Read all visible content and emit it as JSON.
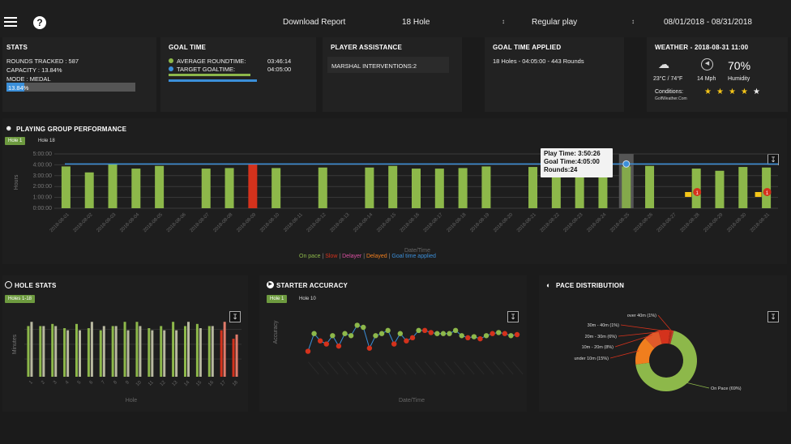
{
  "topbar": {
    "download_label": "Download Report",
    "holes_select": "18 Hole",
    "mode_select": "Regular play",
    "date_range": "08/01/2018 - 08/31/2018",
    "help_glyph": "?"
  },
  "stats": {
    "title": "STATS",
    "rounds_tracked": "ROUNDS TRACKED : 587",
    "capacity": "CAPACITY : 13.84%",
    "mode": "MODE : MEDAL",
    "bar_label": "13.84%",
    "capacity_fraction": 0.1384
  },
  "goal_time": {
    "title": "GOAL TIME",
    "avg_label": "AVERAGE ROUNDTIME:",
    "avg_value": "03:46:14",
    "target_label": "TARGET GOALTIME:",
    "target_value": "04:05:00"
  },
  "assistance": {
    "title": "PLAYER ASSISTANCE",
    "marshal": "MARSHAL INTERVENTIONS:2"
  },
  "goal_applied": {
    "title": "GOAL TIME APPLIED",
    "text": "18 Holes - 04:05:00 - 443 Rounds"
  },
  "weather": {
    "title": "WEATHER - 2018-08-31 11:00",
    "temp": "23°C / 74°F",
    "wind": "14 Mph",
    "humidity_value": "70%",
    "humidity_label": "Humidity",
    "conditions_label": "Conditions:",
    "source": "GolfWeather.Com",
    "rating_stars": 4,
    "rating_max": 5
  },
  "group_perf": {
    "title": "PLAYING GROUP PERFORMANCE",
    "tab_active": "Hole 1",
    "tab_other": "Hole 18",
    "tooltip": {
      "play": "Play Time: 3:50:26",
      "goal": "Goal Time:4:05:00",
      "rounds": "Rounds:24"
    },
    "legend": {
      "on_pace": "On pace",
      "slow": "Slow",
      "delayer": "Delayer",
      "delayed": "Delayed",
      "goal": "Goal time applied",
      "sep": "|"
    },
    "badge_count": "1"
  },
  "hole_stats": {
    "title": "HOLE STATS",
    "tab_active": "Holes 1-18"
  },
  "starter": {
    "title": "STARTER ACCURACY",
    "tab_active": "Hole 1",
    "tab_other": "Hole 10"
  },
  "pace": {
    "title": "PACE DISTRIBUTION"
  },
  "colors": {
    "green": "#8db84a",
    "red": "#d4321c",
    "blue": "#3b8fd9",
    "orange": "#f07e1e",
    "yellow": "#f5c518"
  },
  "chart_data": [
    {
      "type": "bar",
      "title": "",
      "xlabel": "Date/Time",
      "ylabel": "Hours",
      "yticks": [
        "0:00:00",
        "1:00:00",
        "2:00:00",
        "3:00:00",
        "4:00:00",
        "5:00:00"
      ],
      "ylim": [
        0,
        5
      ],
      "categories": [
        "2018-08-01",
        "2018-08-02",
        "2018-08-03",
        "2018-08-04",
        "2018-08-05",
        "2018-08-06",
        "2018-08-07",
        "2018-08-08",
        "2018-08-09",
        "2018-08-10",
        "2018-08-11",
        "2018-08-12",
        "2018-08-13",
        "2018-08-14",
        "2018-08-15",
        "2018-08-16",
        "2018-08-17",
        "2018-08-18",
        "2018-08-19",
        "2018-08-20",
        "2018-08-21",
        "2018-08-22",
        "2018-08-23",
        "2018-08-24",
        "2018-08-25",
        "2018-08-26",
        "2018-08-27",
        "2018-08-28",
        "2018-08-29",
        "2018-08-30",
        "2018-08-31"
      ],
      "values": [
        3.85,
        3.3,
        4.05,
        3.65,
        3.9,
        null,
        3.65,
        3.7,
        4.05,
        3.7,
        null,
        3.75,
        null,
        3.75,
        3.9,
        3.65,
        3.65,
        3.7,
        3.85,
        null,
        3.8,
        3.75,
        3.65,
        3.7,
        3.84,
        3.9,
        null,
        3.65,
        3.45,
        3.8,
        3.75
      ],
      "status": [
        "on",
        "on",
        "on",
        "on",
        "on",
        null,
        "on",
        "on",
        "slow",
        "on",
        null,
        "on",
        null,
        "on",
        "on",
        "on",
        "on",
        "on",
        "on",
        null,
        "on",
        "on",
        "on",
        "on",
        "on",
        "on",
        null,
        "on",
        "on",
        "on",
        "on"
      ],
      "goal_line": 4.08,
      "highlight": "2018-08-25",
      "alerts": [
        "2018-08-28",
        "2018-08-31"
      ],
      "legend": [
        "On pace",
        "Slow",
        "Delayer",
        "Delayed",
        "Goal time applied"
      ]
    },
    {
      "type": "bar",
      "title": "",
      "xlabel": "Hole",
      "ylabel": "Minutes",
      "categories": [
        "1",
        "2",
        "3",
        "4",
        "5",
        "6",
        "7",
        "8",
        "9",
        "10",
        "11",
        "12",
        "13",
        "14",
        "15",
        "16",
        "17",
        "18"
      ],
      "series": [
        {
          "values": [
            12,
            12,
            12.5,
            11.5,
            12.5,
            11.5,
            11,
            12,
            13,
            13,
            11.5,
            12,
            13,
            12,
            12.5,
            12,
            11,
            9
          ],
          "colors": [
            "green",
            "green",
            "green",
            "green",
            "green",
            "green",
            "green",
            "green",
            "green",
            "green",
            "green",
            "green",
            "green",
            "green",
            "green",
            "green",
            "red",
            "red"
          ]
        },
        {
          "values": [
            13,
            12,
            12,
            11,
            11,
            13,
            12,
            12,
            11,
            12,
            11,
            11,
            11,
            13,
            11.5,
            12,
            13,
            10
          ]
        }
      ],
      "ylim": [
        0,
        14
      ]
    },
    {
      "type": "line",
      "title": "",
      "xlabel": "Date/Time",
      "ylabel": "Accuracy",
      "values": [
        -15,
        2,
        -5,
        -8,
        0,
        -10,
        2,
        0,
        10,
        8,
        -12,
        0,
        2,
        5,
        -8,
        2,
        -5,
        -2,
        5,
        5,
        3,
        2,
        2,
        2,
        5,
        0,
        -2,
        -1,
        -3,
        0,
        2,
        3,
        2,
        0,
        1
      ],
      "status": [
        "late",
        "on",
        "late",
        "late",
        "on",
        "late",
        "on",
        "on",
        "on",
        "on",
        "late",
        "on",
        "on",
        "on",
        "late",
        "on",
        "late",
        "late",
        "on",
        "late",
        "late",
        "on",
        "on",
        "on",
        "on",
        "on",
        "late",
        "on",
        "late",
        "on",
        "late",
        "on",
        "late",
        "on",
        "late"
      ],
      "ylim": [
        -20,
        15
      ]
    },
    {
      "type": "pie",
      "title": "",
      "labels": [
        "On Pace (69%)",
        "under 10m (15%)",
        "10m - 20m (8%)",
        "20m - 30m (6%)",
        "30m - 40m (1%)",
        "over 40m (1%)"
      ],
      "values": [
        69,
        15,
        8,
        6,
        1,
        1
      ]
    }
  ]
}
